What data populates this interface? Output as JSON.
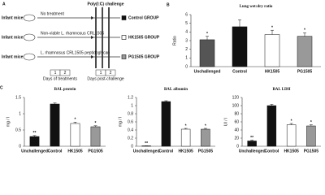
{
  "diagram": {
    "label": "A",
    "challenge": "Poly(I:C) challenge",
    "rows": [
      {
        "mouse": "Infant mice",
        "treatment": "No treatment",
        "group": "Control GROUP"
      },
      {
        "mouse": "Infant mice",
        "treatment": "Non-viable L. rhamnosus CRL1505",
        "group": "HK1505 GROUP"
      },
      {
        "mouse": "Infant mice",
        "treatment": "L. rhamnosus CRL1505 peptidoglycan",
        "group": "PG1505 GROUP"
      }
    ],
    "treatment_days": [
      "1",
      "2"
    ],
    "treatment_days_label": "Days of treatments",
    "post_days": [
      "1",
      "2"
    ],
    "post_days_label": "Days post-challenge"
  },
  "chart_data": [
    {
      "type": "bar",
      "panel": "B",
      "title": "Lung wet:dry ratio",
      "ylabel": "Ratio",
      "categories": [
        "Unchallenged",
        "Control",
        "HK1505",
        "PG1505"
      ],
      "values": [
        3.1,
        4.6,
        3.7,
        3.5
      ],
      "errors": [
        0.4,
        0.8,
        0.5,
        0.4
      ],
      "significance": [
        "*",
        null,
        "*",
        "*"
      ],
      "colors": [
        "#555555",
        "#111111",
        "#ffffff",
        "#999999"
      ],
      "ylim": [
        0,
        6
      ],
      "yticks": [
        0,
        1,
        2,
        3,
        4,
        5,
        6
      ]
    },
    {
      "type": "bar",
      "panel": "C",
      "title": "BAL protein",
      "ylabel": "mg / l",
      "categories": [
        "Unchallenged",
        "Control",
        "HK1505",
        "PG1505"
      ],
      "values": [
        0.3,
        1.3,
        0.7,
        0.6
      ],
      "errors": [
        0.03,
        0.03,
        0.04,
        0.03
      ],
      "significance": [
        "**",
        null,
        "*",
        "*"
      ],
      "colors": [
        "#111111",
        "#111111",
        "#ffffff",
        "#999999"
      ],
      "ylim": [
        0,
        1.5
      ],
      "yticks": [
        0,
        0.5,
        1,
        1.5
      ]
    },
    {
      "type": "bar",
      "title": "BAL albumin",
      "ylabel": "mg / l",
      "categories": [
        "Unchallenged",
        "Control",
        "HK1505",
        "PG1505"
      ],
      "values": [
        0.01,
        1.1,
        0.42,
        0.42
      ],
      "errors": [
        0,
        0.02,
        0.02,
        0.02
      ],
      "significance": [
        "**",
        null,
        "*",
        "*"
      ],
      "colors": [
        "#111111",
        "#111111",
        "#ffffff",
        "#999999"
      ],
      "ylim": [
        0,
        1.2
      ],
      "yticks": [
        0,
        0.2,
        0.4,
        0.6,
        0.8,
        1,
        1.2
      ]
    },
    {
      "type": "bar",
      "title": "BAL LDH",
      "ylabel": "UI / l",
      "categories": [
        "Unchallenged",
        "Control",
        "HK1505",
        "PG1505"
      ],
      "values": [
        13,
        100,
        53,
        50
      ],
      "errors": [
        2,
        3,
        3,
        3
      ],
      "significance": [
        "**",
        null,
        "*",
        "*"
      ],
      "colors": [
        "#111111",
        "#111111",
        "#ffffff",
        "#999999"
      ],
      "ylim": [
        0,
        120
      ],
      "yticks": [
        0,
        20,
        40,
        60,
        80,
        100,
        120
      ]
    }
  ]
}
